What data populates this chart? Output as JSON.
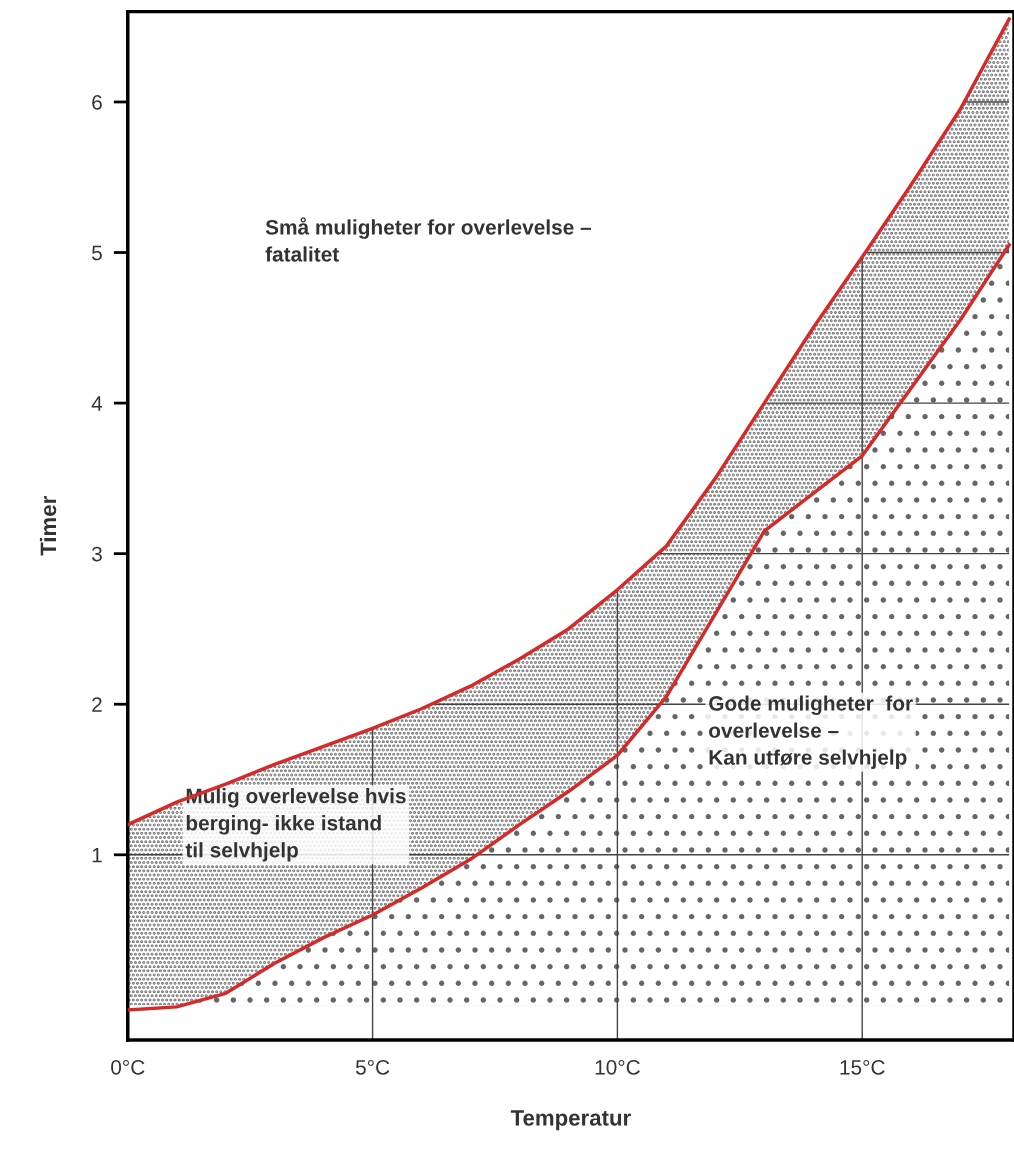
{
  "chart_data": {
    "type": "area",
    "xlabel": "Temperatur",
    "ylabel": "Timer",
    "x": [
      0,
      1,
      2,
      3,
      4,
      5,
      6,
      7,
      8,
      9,
      10,
      11,
      12,
      13,
      14,
      15,
      16,
      17,
      18
    ],
    "series": [
      {
        "color": "#d42a2a",
        "values": [
          1.2,
          1.35,
          1.47,
          1.6,
          1.72,
          1.84,
          1.97,
          2.12,
          2.3,
          2.5,
          2.76,
          3.05,
          3.5,
          4.0,
          4.5,
          4.97,
          5.45,
          5.95,
          6.55
        ]
      },
      {
        "color": "#d42a2a",
        "values": [
          -0.03,
          -0.01,
          0.08,
          0.28,
          0.45,
          0.6,
          0.78,
          0.97,
          1.2,
          1.42,
          1.66,
          2.05,
          2.6,
          3.15,
          3.4,
          3.65,
          4.1,
          4.55,
          5.05
        ]
      }
    ],
    "xlim": [
      0,
      18.1
    ],
    "ylim": [
      -0.23,
      6.6
    ],
    "xticks": [
      {
        "value": 0,
        "label": "0°C"
      },
      {
        "value": 5,
        "label": "5°C"
      },
      {
        "value": 10,
        "label": "10°C"
      },
      {
        "value": 15,
        "label": "15°C"
      }
    ],
    "yticks": [
      1,
      2,
      3,
      4,
      5,
      6
    ],
    "grid": true,
    "line_style": "solid",
    "marker": "none",
    "annotations": [
      "Små muligheter for overlevelse –\nfatalitet",
      "Mulig overlevelse hvis\nberging- ikke istand\ntil selvhjelp",
      "Gode muligheter  for\noverlevelse –\nKan utføre selvhjelp"
    ]
  }
}
